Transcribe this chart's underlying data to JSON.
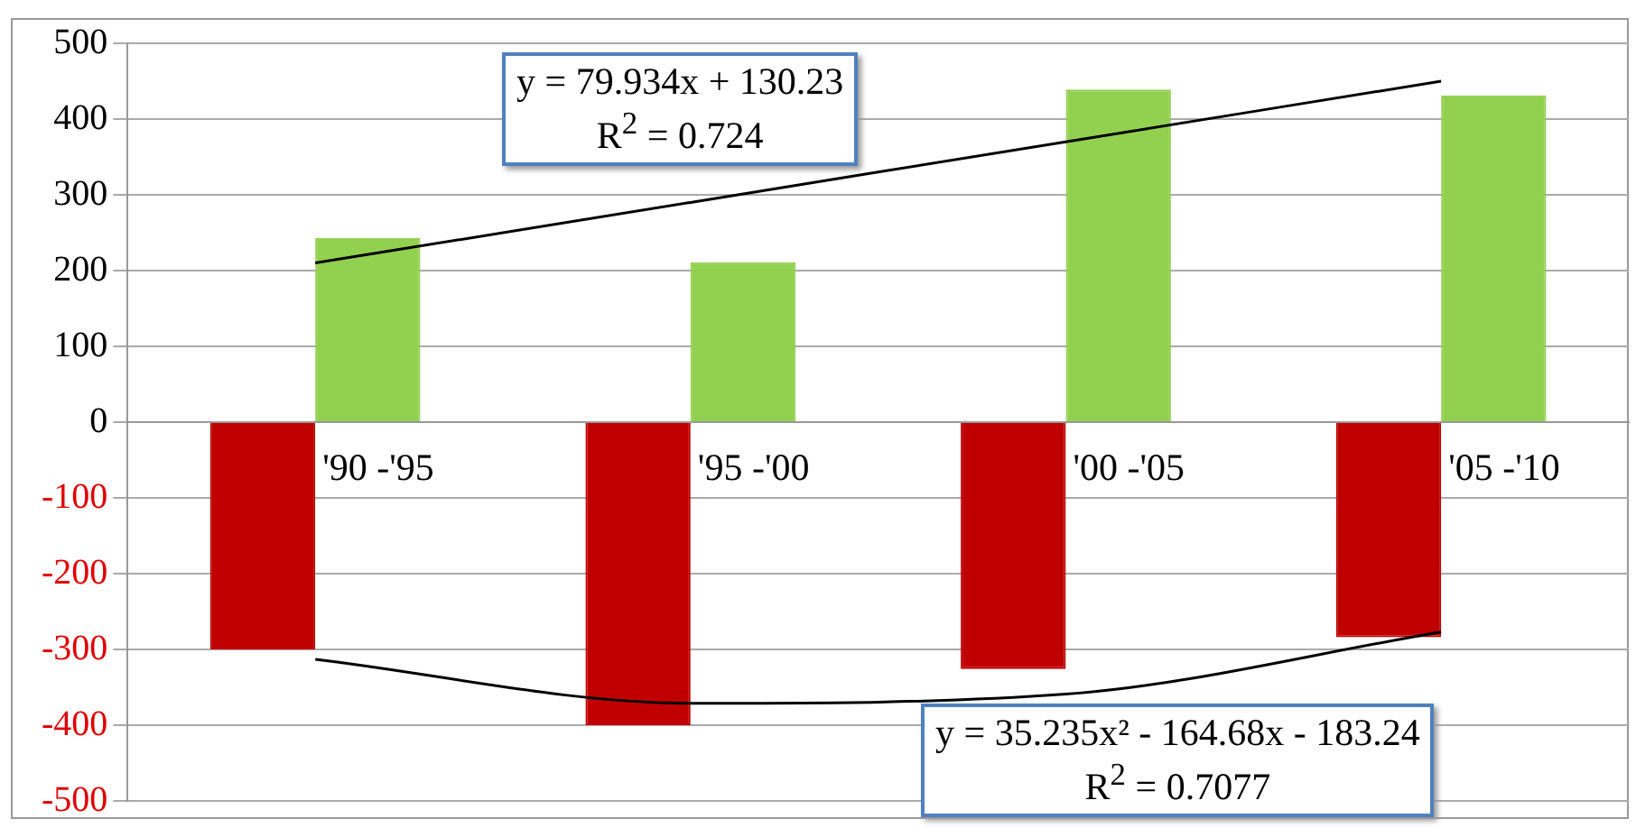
{
  "chart_data": {
    "type": "bar",
    "categories": [
      "'90 -'95",
      "'95 -'00",
      "'00 -'05",
      "'05 -'10"
    ],
    "series": [
      {
        "color": "#c00000",
        "values": [
          -300,
          -400,
          -326,
          -284
        ]
      },
      {
        "color": "#92d050",
        "values": [
          243,
          211,
          439,
          431
        ]
      },
      {
        "type": "line",
        "color": "#000000",
        "values": [
          210,
          290,
          370,
          450
        ]
      },
      {
        "type": "line",
        "color": "#000000",
        "values": [
          -313,
          -371,
          -359,
          -277
        ]
      }
    ],
    "ylim": [
      -500,
      500
    ],
    "yticks": [
      -500,
      -400,
      -300,
      -200,
      -100,
      0,
      100,
      200,
      300,
      400,
      500
    ],
    "grid": "y",
    "legend": false,
    "annotations": [
      "y = 79.934x + 130.23\nR$^{2}$ = 0.724",
      "y = 35.235x² - 164.68x - 183.24\nR$^{2}$ = 0.7077"
    ]
  }
}
